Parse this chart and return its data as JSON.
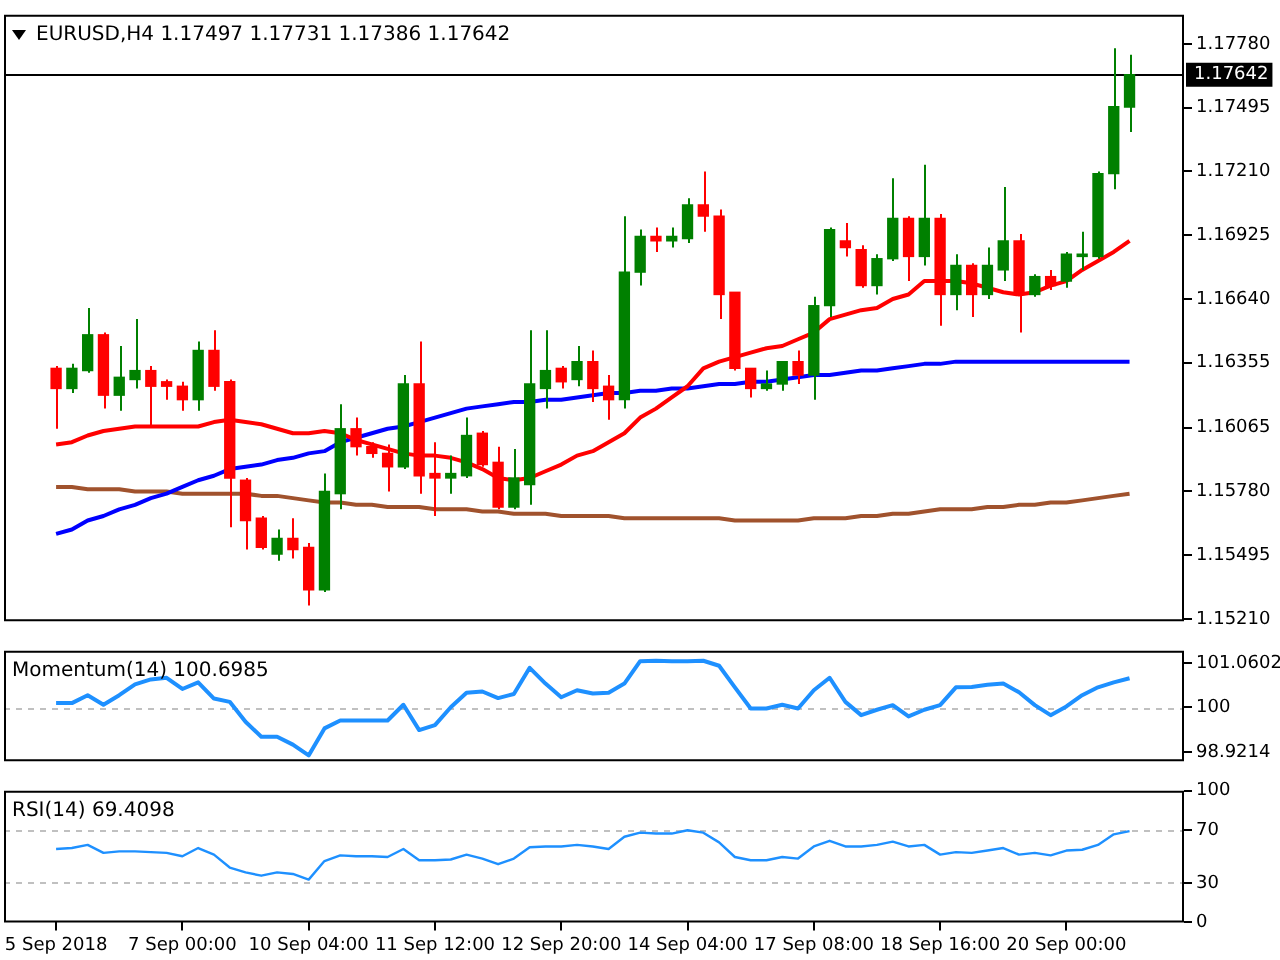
{
  "chart_data": [
    {
      "type": "candlestick",
      "title": "EURUSD,H4  1.17497 1.17731 1.17386 1.17642",
      "categories": [
        null,
        null,
        null,
        null,
        null,
        null,
        null,
        null,
        null,
        null,
        null,
        null,
        null,
        null,
        null,
        null,
        null,
        null,
        null,
        null,
        null,
        null,
        null,
        null,
        null,
        null,
        null,
        null,
        null,
        null,
        null,
        null,
        null,
        null,
        null,
        null,
        null,
        null,
        null,
        null,
        null,
        null,
        null,
        null,
        null,
        null,
        null,
        null,
        null,
        null,
        null,
        null,
        null,
        null,
        null,
        null,
        null,
        null,
        null,
        null,
        null,
        null,
        null,
        null,
        null,
        null,
        null,
        null,
        null
      ],
      "ohlc": [
        [
          1.1633,
          1.1634,
          1.1606,
          1.1624
        ],
        [
          1.1624,
          1.1635,
          1.1622,
          1.1633
        ],
        [
          1.1632,
          1.166,
          1.1631,
          1.1648
        ],
        [
          1.1648,
          1.1649,
          1.1615,
          1.1621
        ],
        [
          1.1621,
          1.1643,
          1.1614,
          1.1629
        ],
        [
          1.1628,
          1.1655,
          1.1624,
          1.1632
        ],
        [
          1.1632,
          1.1634,
          1.1607,
          1.1625
        ],
        [
          1.1627,
          1.1628,
          1.1619,
          1.1625
        ],
        [
          1.1625,
          1.1627,
          1.1614,
          1.1619
        ],
        [
          1.1619,
          1.1645,
          1.1614,
          1.1641
        ],
        [
          1.1641,
          1.165,
          1.1623,
          1.1625
        ],
        [
          1.1627,
          1.1628,
          1.1562,
          1.1584
        ],
        [
          1.1583,
          1.1584,
          1.1552,
          1.1565
        ],
        [
          1.1566,
          1.1567,
          1.1552,
          1.1553
        ],
        [
          1.155,
          1.1561,
          1.1547,
          1.1557
        ],
        [
          1.1557,
          1.1566,
          1.1548,
          1.1552
        ],
        [
          1.1553,
          1.1555,
          1.1527,
          1.1534
        ],
        [
          1.1534,
          1.1586,
          1.1533,
          1.1578
        ],
        [
          1.1577,
          1.1617,
          1.157,
          1.1606
        ],
        [
          1.1606,
          1.1611,
          1.1594,
          1.1598
        ],
        [
          1.1598,
          1.16,
          1.1593,
          1.1595
        ],
        [
          1.1595,
          1.1599,
          1.1578,
          1.1589
        ],
        [
          1.1589,
          1.163,
          1.1588,
          1.1626
        ],
        [
          1.1626,
          1.1645,
          1.1577,
          1.1585
        ],
        [
          1.1586,
          1.16,
          1.1567,
          1.1584
        ],
        [
          1.1584,
          1.1594,
          1.1577,
          1.1586
        ],
        [
          1.1585,
          1.1611,
          1.1584,
          1.1603
        ],
        [
          1.1604,
          1.1605,
          1.1589,
          1.159
        ],
        [
          1.1591,
          1.1598,
          1.157,
          1.1571
        ],
        [
          1.1571,
          1.1597,
          1.157,
          1.1584
        ],
        [
          1.1581,
          1.165,
          1.1572,
          1.1626
        ],
        [
          1.1624,
          1.165,
          1.1615,
          1.1632
        ],
        [
          1.1633,
          1.1634,
          1.1624,
          1.1627
        ],
        [
          1.1628,
          1.1643,
          1.1625,
          1.1636
        ],
        [
          1.1636,
          1.1641,
          1.1618,
          1.1624
        ],
        [
          1.1625,
          1.163,
          1.161,
          1.1619
        ],
        [
          1.1619,
          1.1701,
          1.1615,
          1.1676
        ],
        [
          1.1676,
          1.1695,
          1.167,
          1.1692
        ],
        [
          1.1692,
          1.1696,
          1.1685,
          1.169
        ],
        [
          1.169,
          1.1696,
          1.1687,
          1.1692
        ],
        [
          1.1691,
          1.1709,
          1.1689,
          1.1706
        ],
        [
          1.1706,
          1.1721,
          1.1694,
          1.1701
        ],
        [
          1.1701,
          1.1704,
          1.1655,
          1.1666
        ],
        [
          1.1667,
          1.1667,
          1.1632,
          1.1633
        ],
        [
          1.1633,
          1.1633,
          1.162,
          1.1624
        ],
        [
          1.1624,
          1.1632,
          1.1623,
          1.1626
        ],
        [
          1.1626,
          1.1636,
          1.1623,
          1.1636
        ],
        [
          1.1636,
          1.1641,
          1.1626,
          1.163
        ],
        [
          1.163,
          1.1665,
          1.1619,
          1.1661
        ],
        [
          1.1661,
          1.1696,
          1.1656,
          1.1695
        ],
        [
          1.169,
          1.1698,
          1.1683,
          1.1687
        ],
        [
          1.1686,
          1.1688,
          1.1669,
          1.167
        ],
        [
          1.167,
          1.1684,
          1.1666,
          1.1682
        ],
        [
          1.1682,
          1.1718,
          1.1681,
          1.17
        ],
        [
          1.17,
          1.1701,
          1.1672,
          1.1683
        ],
        [
          1.1683,
          1.1724,
          1.1679,
          1.17
        ],
        [
          1.17,
          1.1702,
          1.1652,
          1.1666
        ],
        [
          1.1666,
          1.1684,
          1.1659,
          1.1679
        ],
        [
          1.1679,
          1.168,
          1.1656,
          1.1666
        ],
        [
          1.1666,
          1.1687,
          1.1664,
          1.1679
        ],
        [
          1.1677,
          1.1714,
          1.1672,
          1.169
        ],
        [
          1.169,
          1.1693,
          1.1649,
          1.1666
        ],
        [
          1.1666,
          1.1675,
          1.1665,
          1.1674
        ],
        [
          1.1674,
          1.1677,
          1.1668,
          1.167
        ],
        [
          1.1672,
          1.1685,
          1.1669,
          1.1684
        ],
        [
          1.1683,
          1.1694,
          1.1677,
          1.1684
        ],
        [
          1.1683,
          1.1721,
          1.1682,
          1.172
        ],
        [
          1.172,
          1.1776,
          1.1713,
          1.175
        ],
        [
          1.17497,
          1.17731,
          1.17386,
          1.17642
        ]
      ],
      "colors": [
        "#ff0000",
        "#008000",
        "#008000",
        "#ff0000",
        "#008000",
        "#008000",
        "#ff0000",
        "#ff0000",
        "#ff0000",
        "#008000",
        "#ff0000",
        "#ff0000",
        "#ff0000",
        "#ff0000",
        "#008000",
        "#ff0000",
        "#ff0000",
        "#008000",
        "#008000",
        "#ff0000",
        "#ff0000",
        "#ff0000",
        "#008000",
        "#ff0000",
        "#ff0000",
        "#008000",
        "#008000",
        "#ff0000",
        "#ff0000",
        "#008000",
        "#008000",
        "#008000",
        "#ff0000",
        "#008000",
        "#ff0000",
        "#ff0000",
        "#008000",
        "#008000",
        "#ff0000",
        "#008000",
        "#008000",
        "#ff0000",
        "#ff0000",
        "#ff0000",
        "#ff0000",
        "#008000",
        "#008000",
        "#ff0000",
        "#008000",
        "#008000",
        "#ff0000",
        "#ff0000",
        "#008000",
        "#008000",
        "#ff0000",
        "#008000",
        "#ff0000",
        "#008000",
        "#ff0000",
        "#008000",
        "#008000",
        "#ff0000",
        "#008000",
        "#ff0000",
        "#008000",
        "#008000",
        "#008000",
        "#008000",
        "#008000"
      ],
      "series": [
        {
          "type": "line",
          "color": "#ff0000",
          "values": [
            1.1599,
            1.16,
            1.1603,
            1.1605,
            1.1606,
            1.1607,
            1.1607,
            1.1607,
            1.1607,
            1.1607,
            1.1609,
            1.161,
            1.1609,
            1.1608,
            1.1606,
            1.1604,
            1.1604,
            1.1605,
            1.1604,
            1.1601,
            1.1599,
            1.1597,
            1.1595,
            1.1594,
            1.1594,
            1.1593,
            1.1591,
            1.1588,
            1.1584,
            1.1583,
            1.1584,
            1.1587,
            1.159,
            1.1594,
            1.1596,
            1.16,
            1.1604,
            1.1611,
            1.1615,
            1.162,
            1.1625,
            1.1633,
            1.1636,
            1.1638,
            1.164,
            1.1642,
            1.1643,
            1.1646,
            1.1649,
            1.1655,
            1.1657,
            1.1659,
            1.166,
            1.1664,
            1.1666,
            1.1672,
            1.1672,
            1.1672,
            1.1671,
            1.1669,
            1.1667,
            1.1666,
            1.1667,
            1.167,
            1.1672,
            1.1677,
            1.1681,
            1.1685,
            1.169
          ]
        },
        {
          "type": "line",
          "color": "#0000ff",
          "values": [
            1.1559,
            1.1561,
            1.1565,
            1.1567,
            1.157,
            1.1572,
            1.1575,
            1.1577,
            1.158,
            1.1583,
            1.1585,
            1.1588,
            1.1589,
            1.159,
            1.1592,
            1.1593,
            1.1595,
            1.1596,
            1.16,
            1.1602,
            1.1604,
            1.1606,
            1.1607,
            1.1609,
            1.1611,
            1.1613,
            1.1615,
            1.1616,
            1.1617,
            1.1618,
            1.1618,
            1.1619,
            1.1619,
            1.162,
            1.1621,
            1.1622,
            1.1622,
            1.1623,
            1.1623,
            1.1624,
            1.1624,
            1.1625,
            1.1626,
            1.1626,
            1.1627,
            1.1627,
            1.1628,
            1.1629,
            1.163,
            1.163,
            1.1631,
            1.1632,
            1.1632,
            1.1633,
            1.1634,
            1.1635,
            1.1635,
            1.1636,
            1.1636,
            1.1636,
            1.1636,
            1.1636,
            1.1636,
            1.1636,
            1.1636,
            1.1636,
            1.1636,
            1.1636,
            1.1636
          ]
        },
        {
          "type": "line",
          "color": "#a0522d",
          "values": [
            1.158,
            1.158,
            1.1579,
            1.1579,
            1.1579,
            1.1578,
            1.1578,
            1.1578,
            1.1577,
            1.1577,
            1.1577,
            1.1577,
            1.1577,
            1.1576,
            1.1576,
            1.1575,
            1.1574,
            1.1573,
            1.1573,
            1.1572,
            1.1572,
            1.1571,
            1.1571,
            1.1571,
            1.157,
            1.157,
            1.157,
            1.1569,
            1.1569,
            1.1568,
            1.1568,
            1.1568,
            1.1567,
            1.1567,
            1.1567,
            1.1567,
            1.1566,
            1.1566,
            1.1566,
            1.1566,
            1.1566,
            1.1566,
            1.1566,
            1.1565,
            1.1565,
            1.1565,
            1.1565,
            1.1565,
            1.1566,
            1.1566,
            1.1566,
            1.1567,
            1.1567,
            1.1568,
            1.1568,
            1.1569,
            1.157,
            1.157,
            1.157,
            1.1571,
            1.1571,
            1.1572,
            1.1572,
            1.1573,
            1.1573,
            1.1574,
            1.1575,
            1.1576,
            1.1577
          ]
        }
      ],
      "ylim": [
        1.152,
        1.1791
      ],
      "yticks": [
        {
          "value": 1.1778,
          "label": "1.17780"
        },
        1.17495,
        {
          "value": 1.1721,
          "label": "1.17210"
        },
        1.16925,
        {
          "value": 1.1664,
          "label": "1.16640"
        },
        1.16355,
        1.16065,
        {
          "value": 1.1578,
          "label": "1.15780"
        },
        1.15495,
        {
          "value": 1.1521,
          "label": "1.15210"
        }
      ],
      "ref_lines": [
        {
          "axis": "y",
          "value": 1.17642,
          "label": "1.17642",
          "color": "#000000"
        }
      ],
      "tick_labels": "y"
    },
    {
      "type": "line",
      "title": "Momentum(14) 100.6985",
      "categories": [
        null,
        null,
        null,
        null,
        null,
        null,
        null,
        null,
        null,
        null,
        null,
        null,
        null,
        null,
        null,
        null,
        null,
        null,
        null,
        null,
        null,
        null,
        null,
        null,
        null,
        null,
        null,
        null,
        null,
        null,
        null,
        null,
        null,
        null,
        null,
        null,
        null,
        null,
        null,
        null,
        null,
        null,
        null,
        null,
        null,
        null,
        null,
        null,
        null,
        null,
        null,
        null,
        null,
        null,
        null,
        null,
        null,
        null,
        null,
        null,
        null,
        null,
        null,
        null,
        null,
        null,
        null,
        null,
        null
      ],
      "series": [
        {
          "color": "#1e90ff",
          "values": [
            100.1,
            100.1,
            100.29,
            100.06,
            100.29,
            100.55,
            100.67,
            100.71,
            100.44,
            100.6,
            100.21,
            100.13,
            99.65,
            99.29,
            99.29,
            99.1,
            98.84,
            99.49,
            99.68,
            99.68,
            99.68,
            99.68,
            100.06,
            99.45,
            99.57,
            100.0,
            100.35,
            100.38,
            100.22,
            100.32,
            100.95,
            100.57,
            100.24,
            100.41,
            100.33,
            100.35,
            100.57,
            101.11,
            101.12,
            101.11,
            101.11,
            101.12,
            101.0,
            100.48,
            99.97,
            99.97,
            100.06,
            99.97,
            100.41,
            100.71,
            100.13,
            99.81,
            99.94,
            100.05,
            99.78,
            99.94,
            100.05,
            100.48,
            100.49,
            100.54,
            100.57,
            100.36,
            100.05,
            99.81,
            100.02,
            100.29,
            100.48,
            100.6,
            100.6985
          ]
        }
      ],
      "ylim": [
        98.7,
        101.36
      ],
      "yticks": [
        101.0602,
        100,
        98.9214
      ],
      "ref_lines": [
        {
          "axis": "y",
          "value": 100,
          "color": "#c0c0c0",
          "line_style": "dashed"
        }
      ],
      "tick_labels": "y"
    },
    {
      "type": "line",
      "title": "RSI(14) 69.4098",
      "categories": [
        "5 Sep 2018",
        null,
        null,
        null,
        null,
        null,
        null,
        null,
        "7 Sep 00:00",
        null,
        null,
        null,
        null,
        null,
        null,
        null,
        "10 Sep 04:00",
        null,
        null,
        null,
        null,
        null,
        null,
        null,
        "11 Sep 12:00",
        null,
        null,
        null,
        null,
        null,
        null,
        null,
        "12 Sep 20:00",
        null,
        null,
        null,
        null,
        null,
        null,
        null,
        "14 Sep 04:00",
        null,
        null,
        null,
        null,
        null,
        null,
        null,
        "17 Sep 08:00",
        null,
        null,
        null,
        null,
        null,
        null,
        null,
        "18 Sep 16:00",
        null,
        null,
        null,
        null,
        null,
        null,
        null,
        "20 Sep 00:00",
        null,
        null,
        null,
        null
      ],
      "series": [
        {
          "color": "#1e90ff",
          "values": [
            55.8,
            56.5,
            58.9,
            52.8,
            54,
            54,
            53.4,
            52.8,
            50.3,
            56.5,
            51.5,
            41.7,
            38,
            35.5,
            38,
            36.8,
            32.5,
            46.6,
            50.9,
            50.3,
            50.3,
            49.7,
            55.8,
            47.2,
            47.2,
            47.8,
            51.5,
            48.5,
            44.2,
            48.5,
            57.1,
            57.7,
            57.7,
            58.9,
            57.7,
            55.8,
            65.1,
            68.2,
            67.5,
            67.5,
            70,
            68.2,
            60.8,
            49.7,
            47.2,
            47.2,
            49.7,
            48.5,
            57.7,
            62,
            57.7,
            57.7,
            58.9,
            61.4,
            57.7,
            58.9,
            51.5,
            53.4,
            52.8,
            54.6,
            56.5,
            51.5,
            52.8,
            50.9,
            54.6,
            55.2,
            58.9,
            66.9,
            69.4098
          ]
        }
      ],
      "ylim": [
        0,
        100
      ],
      "yticks": [
        0,
        30,
        70,
        100
      ],
      "ref_lines": [
        {
          "axis": "y",
          "value": 70,
          "color": "#c0c0c0",
          "line_style": "dashed"
        },
        {
          "axis": "y",
          "value": 30,
          "color": "#c0c0c0",
          "line_style": "dashed"
        }
      ]
    }
  ]
}
